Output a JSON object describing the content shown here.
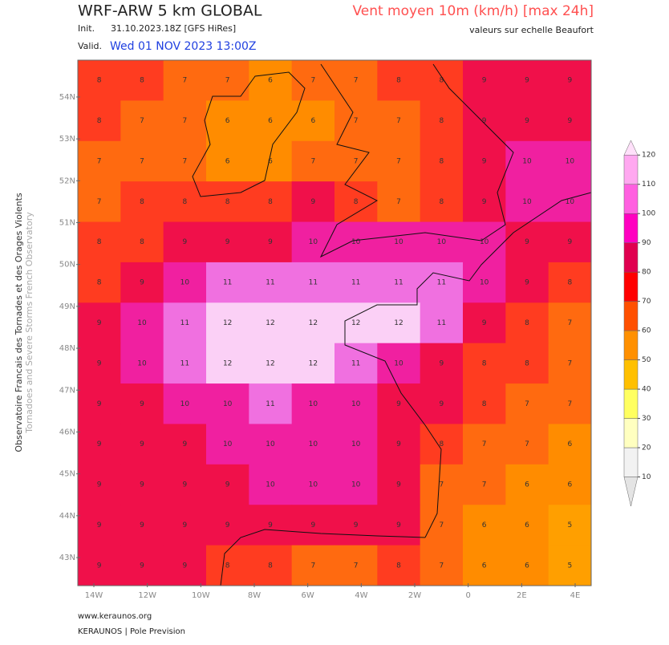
{
  "header": {
    "title": "WRF-ARW 5 km GLOBAL",
    "init_label": "Init.",
    "init": "31.10.2023.18Z [GFS HiRes]",
    "valid_label": "Valid.",
    "valid": "Wed 01 NOV 2023 13:00Z",
    "variable": "Vent moyen 10m (km/h) [max 24h]",
    "note": "valeurs sur echelle Beaufort"
  },
  "side": {
    "line1": "Observatoire Francais des Tornades et des Orages Violents",
    "line2": "Tornadoes and Severe Storms French Observatory"
  },
  "footer": {
    "url": "www.keraunos.org",
    "credit": "KERAUNOS | Pole Prevision"
  },
  "map": {
    "lon_lim": [
      -14.6,
      4.6
    ],
    "lat_lim": [
      54.88,
      42.33
    ],
    "lat_ticks": [
      {
        "value": 54,
        "label": "54N"
      },
      {
        "value": 53,
        "label": "53N"
      },
      {
        "value": 52,
        "label": "52N"
      },
      {
        "value": 51,
        "label": "51N"
      },
      {
        "value": 50,
        "label": "50N"
      },
      {
        "value": 49,
        "label": "49N"
      },
      {
        "value": 48,
        "label": "48N"
      },
      {
        "value": 47,
        "label": "47N"
      },
      {
        "value": 46,
        "label": "46N"
      },
      {
        "value": 45,
        "label": "45N"
      },
      {
        "value": 44,
        "label": "44N"
      },
      {
        "value": 43,
        "label": "43N"
      }
    ],
    "lon_ticks": [
      {
        "value": -14,
        "label": "14W"
      },
      {
        "value": -12,
        "label": "12W"
      },
      {
        "value": -10,
        "label": "10W"
      },
      {
        "value": -8,
        "label": "8W"
      },
      {
        "value": -6,
        "label": "6W"
      },
      {
        "value": -4,
        "label": "4W"
      },
      {
        "value": -2,
        "label": "2W"
      },
      0,
      {
        "value": 2,
        "label": "2E"
      },
      {
        "value": 4,
        "label": "4E"
      }
    ],
    "cell_colors": {
      "5": "#ff9f00",
      "6": "#ff8c00",
      "7": "#ff6a10",
      "8": "#ff3c20",
      "9": "#f0104a",
      "10": "#f020a0",
      "11": "#f070e0",
      "12": "#fbd0f6"
    },
    "beaufort_grid": [
      [
        8,
        8,
        7,
        7,
        6,
        7,
        7,
        8,
        8,
        9,
        9,
        9
      ],
      [
        8,
        7,
        7,
        6,
        6,
        6,
        7,
        7,
        8,
        9,
        9,
        9
      ],
      [
        7,
        7,
        7,
        6,
        6,
        7,
        7,
        7,
        8,
        9,
        10,
        10
      ],
      [
        7,
        8,
        8,
        8,
        8,
        9,
        8,
        7,
        8,
        9,
        10,
        10
      ],
      [
        8,
        8,
        9,
        9,
        9,
        10,
        10,
        10,
        10,
        10,
        9,
        9
      ],
      [
        8,
        9,
        10,
        11,
        11,
        11,
        11,
        11,
        11,
        10,
        9,
        8
      ],
      [
        9,
        10,
        11,
        12,
        12,
        12,
        12,
        12,
        11,
        9,
        8,
        7
      ],
      [
        9,
        10,
        11,
        12,
        12,
        12,
        11,
        10,
        9,
        8,
        8,
        7
      ],
      [
        9,
        9,
        10,
        10,
        11,
        10,
        10,
        9,
        9,
        8,
        7,
        7
      ],
      [
        9,
        9,
        9,
        10,
        10,
        10,
        10,
        9,
        8,
        7,
        7,
        6
      ],
      [
        9,
        9,
        9,
        9,
        10,
        10,
        10,
        9,
        7,
        7,
        6,
        6
      ],
      [
        9,
        9,
        9,
        9,
        9,
        9,
        9,
        9,
        7,
        6,
        6,
        5
      ],
      [
        9,
        9,
        9,
        8,
        8,
        7,
        7,
        8,
        7,
        6,
        6,
        5
      ]
    ]
  },
  "colorbar": {
    "lim": [
      0,
      125
    ],
    "ticks": [
      10,
      20,
      30,
      40,
      50,
      60,
      70,
      80,
      90,
      100,
      110,
      120
    ],
    "colors": [
      "#e4e4e4",
      "#f2f2f2",
      "#ffffc0",
      "#ffff60",
      "#ffc000",
      "#ff9000",
      "#ff5000",
      "#ff0000",
      "#e00050",
      "#ff00c0",
      "#ff60e0",
      "#ffa8f0",
      "#ffe0fa"
    ]
  }
}
